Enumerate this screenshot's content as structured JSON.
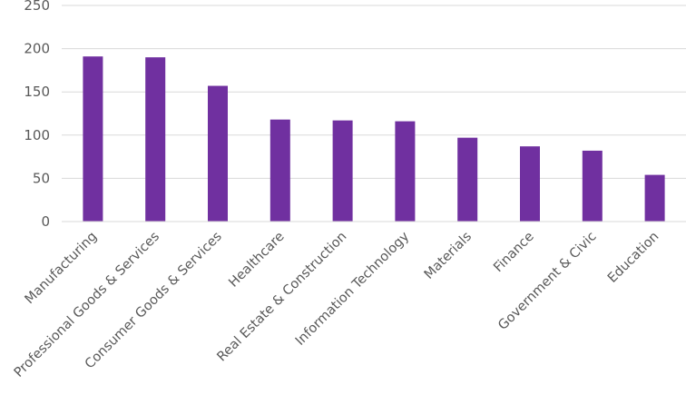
{
  "chart_data": {
    "type": "bar",
    "title": "",
    "xlabel": "",
    "ylabel": "",
    "categories": [
      "Manufacturing",
      "Professional Goods & Services",
      "Consumer Goods & Services",
      "Healthcare",
      "Real Estate & Construction",
      "Information Technology",
      "Materials",
      "Finance",
      "Government & Civic",
      "Education"
    ],
    "values": [
      191,
      190,
      157,
      118,
      117,
      116,
      97,
      87,
      82,
      54
    ],
    "ylim": [
      0,
      250
    ],
    "yticks": [
      "0",
      "50",
      "100",
      "150",
      "200",
      "250"
    ],
    "grid": true,
    "legend": "none",
    "bar_color": "#7030a0"
  }
}
